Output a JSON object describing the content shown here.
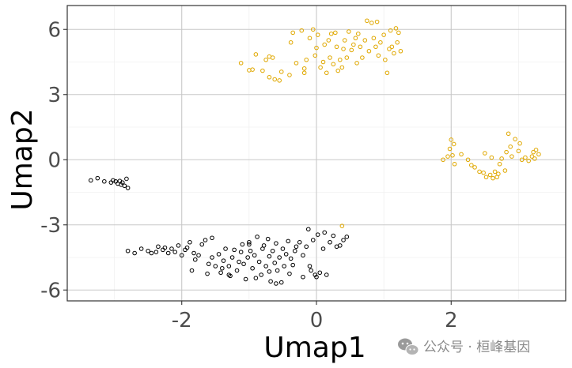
{
  "colors": {
    "background": "#ffffff",
    "grid": "#c8c8c8",
    "panel_border": "#333333",
    "tick_text": "#4d4d4d",
    "axis_title": "#000000",
    "group_gold": "#E0A800",
    "group_black": "#000000",
    "watermark": "#8a8a8a"
  },
  "watermark": {
    "text": "公众号 · 桓峰基因",
    "icon": "wechat-icon"
  },
  "chart_data": {
    "type": "scatter",
    "title": "",
    "xlabel": "Umap1",
    "ylabel": "Umap2",
    "xlim": [
      -3.7,
      3.7
    ],
    "ylim": [
      -6.5,
      7.1
    ],
    "x_ticks": [
      -2,
      0,
      2
    ],
    "x_tick_labels": [
      "-2",
      "0",
      "2"
    ],
    "y_ticks": [
      -6,
      -3,
      0,
      3,
      6
    ],
    "y_tick_labels": [
      "-6",
      "-3",
      "0",
      "3",
      "6"
    ],
    "grid": true,
    "legend": "none",
    "marker": "open circle",
    "series": [
      {
        "color": "#E0A800",
        "points": [
          [
            -1.12,
            4.45
          ],
          [
            -1.0,
            4.12
          ],
          [
            -0.95,
            4.15
          ],
          [
            -0.9,
            4.85
          ],
          [
            -0.8,
            4.1
          ],
          [
            -0.75,
            4.6
          ],
          [
            -0.7,
            4.75
          ],
          [
            -0.65,
            4.7
          ],
          [
            -0.7,
            3.8
          ],
          [
            -0.62,
            3.7
          ],
          [
            -0.55,
            3.65
          ],
          [
            -0.52,
            4.05
          ],
          [
            -0.4,
            3.9
          ],
          [
            -0.38,
            5.4
          ],
          [
            -0.35,
            5.85
          ],
          [
            -0.3,
            4.45
          ],
          [
            -0.22,
            5.95
          ],
          [
            -0.18,
            4.2
          ],
          [
            -0.18,
            4.0
          ],
          [
            -0.15,
            4.6
          ],
          [
            -0.1,
            5.6
          ],
          [
            -0.05,
            6.0
          ],
          [
            -0.02,
            4.8
          ],
          [
            0.0,
            5.15
          ],
          [
            0.02,
            5.75
          ],
          [
            0.06,
            4.25
          ],
          [
            0.1,
            4.5
          ],
          [
            0.12,
            5.3
          ],
          [
            0.15,
            4.0
          ],
          [
            0.18,
            5.5
          ],
          [
            0.2,
            4.7
          ],
          [
            0.22,
            5.8
          ],
          [
            0.25,
            4.4
          ],
          [
            0.28,
            5.85
          ],
          [
            0.3,
            5.2
          ],
          [
            0.32,
            4.1
          ],
          [
            0.35,
            4.6
          ],
          [
            0.38,
            4.25
          ],
          [
            0.4,
            5.1
          ],
          [
            0.42,
            5.5
          ],
          [
            0.45,
            4.7
          ],
          [
            0.48,
            5.9
          ],
          [
            0.52,
            5.05
          ],
          [
            0.55,
            5.3
          ],
          [
            0.58,
            5.6
          ],
          [
            0.6,
            4.45
          ],
          [
            0.62,
            5.8
          ],
          [
            0.65,
            5.2
          ],
          [
            0.68,
            4.7
          ],
          [
            0.72,
            5.5
          ],
          [
            0.75,
            6.4
          ],
          [
            0.78,
            5.0
          ],
          [
            0.82,
            6.3
          ],
          [
            0.85,
            5.6
          ],
          [
            0.88,
            5.2
          ],
          [
            0.9,
            6.35
          ],
          [
            0.92,
            4.8
          ],
          [
            0.95,
            5.4
          ],
          [
            1.0,
            5.75
          ],
          [
            1.02,
            4.6
          ],
          [
            1.05,
            4.0
          ],
          [
            1.08,
            5.1
          ],
          [
            1.1,
            5.95
          ],
          [
            1.12,
            5.2
          ],
          [
            1.15,
            4.9
          ],
          [
            1.18,
            6.05
          ],
          [
            1.2,
            5.4
          ],
          [
            1.22,
            5.85
          ],
          [
            1.25,
            5.0
          ]
        ]
      },
      {
        "color": "#E0A800",
        "points": [
          [
            1.88,
            0.0
          ],
          [
            1.95,
            0.15
          ],
          [
            1.98,
            0.5
          ],
          [
            2.0,
            0.92
          ],
          [
            2.02,
            0.2
          ],
          [
            2.04,
            0.72
          ],
          [
            2.05,
            -0.2
          ],
          [
            2.15,
            0.25
          ],
          [
            2.25,
            0.0
          ],
          [
            2.3,
            -0.25
          ],
          [
            2.35,
            -0.35
          ],
          [
            2.42,
            -0.55
          ],
          [
            2.48,
            -0.6
          ],
          [
            2.5,
            0.3
          ],
          [
            2.52,
            -0.8
          ],
          [
            2.58,
            -0.7
          ],
          [
            2.6,
            0.1
          ],
          [
            2.62,
            -0.85
          ],
          [
            2.65,
            -0.55
          ],
          [
            2.68,
            -0.8
          ],
          [
            2.7,
            -0.65
          ],
          [
            2.72,
            -0.2
          ],
          [
            2.75,
            0.05
          ],
          [
            2.8,
            -0.5
          ],
          [
            2.82,
            0.35
          ],
          [
            2.85,
            1.2
          ],
          [
            2.88,
            0.6
          ],
          [
            2.9,
            0.15
          ],
          [
            2.95,
            0.95
          ],
          [
            3.0,
            0.4
          ],
          [
            3.02,
            0.75
          ],
          [
            3.05,
            0.0
          ],
          [
            3.1,
            0.1
          ],
          [
            3.15,
            -0.05
          ],
          [
            3.2,
            0.15
          ],
          [
            3.22,
            0.35
          ],
          [
            3.24,
            0.05
          ],
          [
            3.26,
            0.45
          ],
          [
            3.3,
            0.25
          ]
        ]
      },
      {
        "color": "#E0A800",
        "points": [
          [
            0.38,
            -3.05
          ]
        ]
      },
      {
        "color": "#000000",
        "points": [
          [
            -3.35,
            -0.95
          ],
          [
            -3.25,
            -0.85
          ],
          [
            -3.15,
            -1.0
          ],
          [
            -3.05,
            -1.05
          ],
          [
            -3.02,
            -0.95
          ],
          [
            -2.98,
            -1.0
          ],
          [
            -2.95,
            -1.1
          ],
          [
            -2.92,
            -0.98
          ],
          [
            -2.9,
            -1.15
          ],
          [
            -2.88,
            -1.05
          ],
          [
            -2.85,
            -1.2
          ],
          [
            -2.82,
            -0.88
          ],
          [
            -2.8,
            -1.3
          ]
        ]
      },
      {
        "color": "#000000",
        "points": [
          [
            -2.8,
            -4.2
          ],
          [
            -2.7,
            -4.3
          ],
          [
            -2.6,
            -4.1
          ],
          [
            -2.5,
            -4.2
          ],
          [
            -2.45,
            -4.3
          ],
          [
            -2.38,
            -4.25
          ],
          [
            -2.35,
            -4.0
          ],
          [
            -2.28,
            -4.15
          ],
          [
            -2.25,
            -4.05
          ],
          [
            -2.2,
            -4.3
          ],
          [
            -2.1,
            -4.25
          ],
          [
            -2.05,
            -3.95
          ],
          [
            -2.0,
            -4.4
          ],
          [
            -1.95,
            -4.15
          ],
          [
            -1.92,
            -4.05
          ],
          [
            -1.88,
            -3.8
          ],
          [
            -1.82,
            -4.3
          ],
          [
            -1.8,
            -4.6
          ],
          [
            -1.75,
            -4.4
          ],
          [
            -1.7,
            -3.9
          ],
          [
            -1.65,
            -3.7
          ],
          [
            -1.6,
            -4.8
          ],
          [
            -1.55,
            -4.5
          ],
          [
            -1.5,
            -4.9
          ],
          [
            -1.45,
            -4.35
          ],
          [
            -1.42,
            -5.2
          ],
          [
            -1.38,
            -4.65
          ],
          [
            -1.35,
            -4.1
          ],
          [
            -1.3,
            -4.9
          ],
          [
            -1.28,
            -5.35
          ],
          [
            -1.25,
            -4.5
          ],
          [
            -1.22,
            -4.15
          ],
          [
            -1.18,
            -5.1
          ],
          [
            -1.15,
            -4.7
          ],
          [
            -1.12,
            -4.25
          ],
          [
            -1.1,
            -3.9
          ],
          [
            -1.08,
            -4.8
          ],
          [
            -1.05,
            -5.5
          ],
          [
            -1.02,
            -4.5
          ],
          [
            -1.0,
            -3.8
          ],
          [
            -0.98,
            -4.2
          ],
          [
            -0.95,
            -5.0
          ],
          [
            -0.92,
            -4.4
          ],
          [
            -0.88,
            -3.55
          ],
          [
            -0.85,
            -4.7
          ],
          [
            -0.82,
            -5.3
          ],
          [
            -0.8,
            -4.1
          ],
          [
            -0.78,
            -3.95
          ],
          [
            -0.75,
            -4.9
          ],
          [
            -0.72,
            -3.65
          ],
          [
            -0.7,
            -4.45
          ],
          [
            -0.68,
            -5.6
          ],
          [
            -0.65,
            -4.2
          ],
          [
            -0.62,
            -4.75
          ],
          [
            -0.6,
            -3.85
          ],
          [
            -0.58,
            -5.1
          ],
          [
            -0.55,
            -4.5
          ],
          [
            -0.52,
            -5.65
          ],
          [
            -0.5,
            -4.1
          ],
          [
            -0.48,
            -4.9
          ],
          [
            -0.45,
            -4.35
          ],
          [
            -0.42,
            -3.75
          ],
          [
            -0.4,
            -5.25
          ],
          [
            -0.38,
            -4.55
          ],
          [
            -0.35,
            -4.85
          ],
          [
            -0.32,
            -4.2
          ],
          [
            -0.3,
            -4.0
          ],
          [
            -0.25,
            -3.8
          ],
          [
            -0.2,
            -4.4
          ],
          [
            -0.15,
            -4.0
          ],
          [
            -0.12,
            -3.2
          ],
          [
            -0.1,
            -4.9
          ],
          [
            -0.08,
            -5.1
          ],
          [
            -0.05,
            -3.7
          ],
          [
            -0.02,
            -5.3
          ],
          [
            0.0,
            -5.4
          ],
          [
            0.02,
            -3.45
          ],
          [
            0.05,
            -5.2
          ],
          [
            0.1,
            -4.1
          ],
          [
            0.12,
            -3.35
          ],
          [
            0.15,
            -5.3
          ],
          [
            0.2,
            -3.8
          ],
          [
            0.25,
            -3.5
          ],
          [
            0.3,
            -4.0
          ],
          [
            0.35,
            -3.95
          ],
          [
            0.4,
            -3.7
          ],
          [
            0.45,
            -3.55
          ],
          [
            -1.85,
            -5.1
          ],
          [
            -1.62,
            -5.25
          ],
          [
            -1.3,
            -5.3
          ],
          [
            -1.55,
            -3.6
          ],
          [
            -0.9,
            -5.45
          ],
          [
            -0.6,
            -5.7
          ],
          [
            -2.15,
            -4.1
          ],
          [
            -1.0,
            -3.9
          ],
          [
            -0.7,
            -5.15
          ],
          [
            -1.4,
            -5.0
          ],
          [
            -0.2,
            -5.4
          ]
        ]
      }
    ]
  }
}
